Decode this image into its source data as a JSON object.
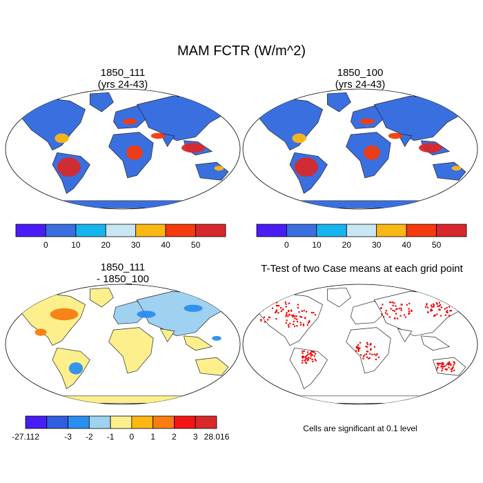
{
  "title": "MAM FCTR (W/m^2)",
  "panels": {
    "top_left": {
      "title_line1": "1850_111",
      "title_line2": "(yrs 24-43)"
    },
    "top_right": {
      "title_line1": "1850_100",
      "title_line2": "(yrs 24-43)"
    },
    "bottom_left": {
      "title_line1": "1850_111",
      "title_line2": "- 1850_100"
    },
    "bottom_right": {
      "title": "T-Test of two Case means at each grid point",
      "note": "Cells are significant at 0.1 level"
    }
  },
  "colorbars": {
    "abs": {
      "colors": [
        "#4a1cf5",
        "#3a6fe0",
        "#16b4ef",
        "#c8e6f3",
        "#fbb714",
        "#f53a0e",
        "#d8282b"
      ],
      "labels": [
        "0",
        "10",
        "20",
        "30",
        "40",
        "50"
      ]
    },
    "diff": {
      "colors": [
        "#4a1cf5",
        "#2f5fe0",
        "#2a8ef0",
        "#9fd2f0",
        "#fdf08c",
        "#fbb714",
        "#f77d12",
        "#f41414",
        "#d8282b"
      ],
      "labels": [
        "-27.112",
        "-3",
        "-2",
        "-1",
        "0",
        "1",
        "2",
        "3",
        "28.016"
      ]
    }
  },
  "map_colors": {
    "abs_land": "#3a6fe0",
    "abs_warm": "#f53a0e",
    "abs_hot": "#d8282b",
    "abs_mid": "#fbb714",
    "diff_land": "#fdf08c",
    "diff_cool": "#9fd2f0",
    "diff_neg": "#2a8ef0",
    "diff_pos": "#f77d12",
    "ttest_sig": "#ee0000",
    "ocean": "#ffffff"
  }
}
